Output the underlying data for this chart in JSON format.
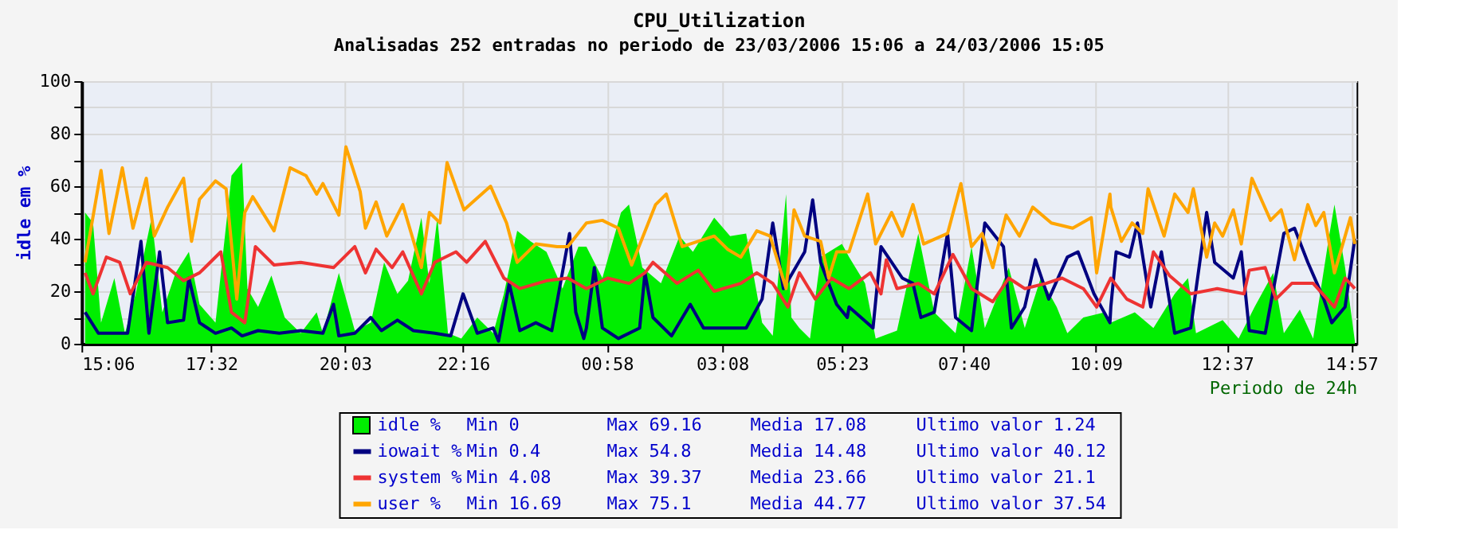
{
  "chart_data": {
    "type": "line",
    "title": "CPU_Utilization",
    "subtitle": "Analisadas 252 entradas no periodo de 23/03/2006 15:06 a 24/03/2006 15:05",
    "xlabel": "Periodo de 24h",
    "ylabel": "idle em %",
    "xlim": [
      "2006-03-23T15:06",
      "2006-03-24T15:03"
    ],
    "ylim": [
      0,
      100
    ],
    "xticks": [
      {
        "value": "2006-03-23T15:06",
        "label": "15:06"
      },
      {
        "value": "2006-03-23T17:32",
        "label": "17:32"
      },
      {
        "value": "2006-03-23T20:03",
        "label": "20:03"
      },
      {
        "value": "2006-03-23T22:16",
        "label": "22:16"
      },
      {
        "value": "2006-03-24T00:58",
        "label": "00:58"
      },
      {
        "value": "2006-03-24T03:08",
        "label": "03:08"
      },
      {
        "value": "2006-03-24T05:23",
        "label": "05:23"
      },
      {
        "value": "2006-03-24T07:40",
        "label": "07:40"
      },
      {
        "value": "2006-03-24T10:09",
        "label": "10:09"
      },
      {
        "value": "2006-03-24T12:37",
        "label": "12:37"
      },
      {
        "value": "2006-03-24T14:57",
        "label": "14:57"
      }
    ],
    "yticks": [
      0,
      {
        "value": 10,
        "label": null
      },
      20,
      {
        "value": 30,
        "label": null
      },
      40,
      {
        "value": 50,
        "label": null
      },
      60,
      {
        "value": 70,
        "label": null
      },
      80,
      {
        "value": 90,
        "label": null
      },
      100
    ],
    "grid": true,
    "legend": "bottom",
    "series": [
      {
        "name": "idle %",
        "type": "area",
        "color": "#00ee00",
        "x": [
          "2006-03-23T15:10",
          "2006-03-23T15:19",
          "2006-03-23T15:28",
          "2006-03-23T15:43",
          "2006-03-23T15:55",
          "2006-03-23T16:07",
          "2006-03-23T16:25",
          "2006-03-23T16:37",
          "2006-03-23T16:52",
          "2006-03-23T17:07",
          "2006-03-23T17:19",
          "2006-03-23T17:37",
          "2006-03-23T17:55",
          "2006-03-23T18:07",
          "2006-03-23T18:13",
          "2006-03-23T18:25",
          "2006-03-23T18:40",
          "2006-03-23T18:55",
          "2006-03-23T19:13",
          "2006-03-23T19:31",
          "2006-03-23T19:38",
          "2006-03-23T19:56",
          "2006-03-23T20:14",
          "2006-03-23T20:32",
          "2006-03-23T20:47",
          "2006-03-23T21:02",
          "2006-03-23T21:14",
          "2006-03-23T21:29",
          "2006-03-23T21:38",
          "2006-03-23T21:47",
          "2006-03-23T21:59",
          "2006-03-23T22:14",
          "2006-03-23T22:32",
          "2006-03-23T22:50",
          "2006-03-23T23:02",
          "2006-03-23T23:17",
          "2006-03-23T23:32",
          "2006-03-23T23:50",
          "2006-03-24T00:08",
          "2006-03-24T00:26",
          "2006-03-24T00:35",
          "2006-03-24T00:53",
          "2006-03-24T01:14",
          "2006-03-24T01:23",
          "2006-03-24T01:38",
          "2006-03-24T01:59",
          "2006-03-24T02:20",
          "2006-03-24T02:35",
          "2006-03-24T02:59",
          "2006-03-24T03:17",
          "2006-03-24T03:35",
          "2006-03-24T03:53",
          "2006-03-24T04:05",
          "2006-03-24T04:20",
          "2006-03-24T04:26",
          "2006-03-24T04:35",
          "2006-03-24T04:47",
          "2006-03-24T04:59",
          "2006-03-24T05:23",
          "2006-03-24T05:31",
          "2006-03-24T05:49",
          "2006-03-24T06:01",
          "2006-03-24T06:25",
          "2006-03-24T06:49",
          "2006-03-24T07:07",
          "2006-03-24T07:31",
          "2006-03-24T07:49",
          "2006-03-24T08:04",
          "2006-03-24T08:31",
          "2006-03-24T08:49",
          "2006-03-24T09:07",
          "2006-03-24T09:25",
          "2006-03-24T09:37",
          "2006-03-24T09:55",
          "2006-03-24T10:19",
          "2006-03-24T10:26",
          "2006-03-24T10:53",
          "2006-03-24T11:14",
          "2006-03-24T11:38",
          "2006-03-24T11:53",
          "2006-03-24T12:02",
          "2006-03-24T12:32",
          "2006-03-24T12:50",
          "2006-03-24T13:08",
          "2006-03-24T13:29",
          "2006-03-24T13:41",
          "2006-03-24T13:59",
          "2006-03-24T14:14",
          "2006-03-24T14:32",
          "2006-03-24T14:38",
          "2006-03-24T14:50",
          "2006-03-24T15:01"
        ],
        "values": [
          50,
          46,
          8,
          25,
          4,
          19,
          48,
          12,
          27,
          35,
          15,
          8,
          64,
          69,
          21,
          14,
          26,
          10,
          4,
          12,
          4,
          27,
          5,
          8,
          31,
          19,
          24,
          48,
          23,
          48,
          4,
          2,
          10,
          4,
          19,
          43,
          39,
          35,
          21,
          37,
          37,
          25,
          50,
          53,
          29,
          23,
          41,
          35,
          48,
          41,
          42,
          8,
          3,
          57,
          10,
          6,
          2,
          33,
          38,
          33,
          23,
          2,
          5,
          42,
          12,
          4,
          37,
          6,
          29,
          6,
          25,
          14,
          4,
          10,
          12,
          8,
          12,
          6,
          19,
          25,
          4,
          9,
          2,
          14,
          27,
          4,
          13,
          2,
          41,
          53,
          29,
          1
        ]
      },
      {
        "name": "iowait %",
        "color": "#000080",
        "x": [
          "2006-03-23T15:10",
          "2006-03-23T15:25",
          "2006-03-23T15:43",
          "2006-03-23T15:58",
          "2006-03-23T16:13",
          "2006-03-23T16:22",
          "2006-03-23T16:34",
          "2006-03-23T16:43",
          "2006-03-23T17:01",
          "2006-03-23T17:07",
          "2006-03-23T17:19",
          "2006-03-23T17:37",
          "2006-03-23T17:55",
          "2006-03-23T18:07",
          "2006-03-23T18:25",
          "2006-03-23T18:49",
          "2006-03-23T19:13",
          "2006-03-23T19:38",
          "2006-03-23T19:50",
          "2006-03-23T19:56",
          "2006-03-23T20:14",
          "2006-03-23T20:32",
          "2006-03-23T20:44",
          "2006-03-23T21:02",
          "2006-03-23T21:20",
          "2006-03-23T21:44",
          "2006-03-23T22:02",
          "2006-03-23T22:16",
          "2006-03-23T22:32",
          "2006-03-23T22:50",
          "2006-03-23T22:56",
          "2006-03-23T23:08",
          "2006-03-23T23:20",
          "2006-03-23T23:38",
          "2006-03-23T23:56",
          "2006-03-24T00:16",
          "2006-03-24T00:23",
          "2006-03-24T00:32",
          "2006-03-24T00:35",
          "2006-03-24T00:44",
          "2006-03-24T00:53",
          "2006-03-24T01:11",
          "2006-03-24T01:35",
          "2006-03-24T01:41",
          "2006-03-24T01:50",
          "2006-03-24T02:11",
          "2006-03-24T02:32",
          "2006-03-24T02:47",
          "2006-03-24T03:11",
          "2006-03-24T03:35",
          "2006-03-24T03:53",
          "2006-03-24T04:05",
          "2006-03-24T04:17",
          "2006-03-24T04:41",
          "2006-03-24T04:50",
          "2006-03-24T04:59",
          "2006-03-24T05:17",
          "2006-03-24T05:29",
          "2006-03-24T05:31",
          "2006-03-24T05:58",
          "2006-03-24T06:07",
          "2006-03-24T06:19",
          "2006-03-24T06:31",
          "2006-03-24T06:43",
          "2006-03-24T06:52",
          "2006-03-24T07:07",
          "2006-03-24T07:22",
          "2006-03-24T07:31",
          "2006-03-24T07:49",
          "2006-03-24T08:04",
          "2006-03-24T08:25",
          "2006-03-24T08:34",
          "2006-03-24T08:49",
          "2006-03-24T09:01",
          "2006-03-24T09:16",
          "2006-03-24T09:37",
          "2006-03-24T09:49",
          "2006-03-24T10:07",
          "2006-03-24T10:25",
          "2006-03-24T10:26",
          "2006-03-24T10:32",
          "2006-03-24T10:47",
          "2006-03-24T10:56",
          "2006-03-24T11:11",
          "2006-03-24T11:23",
          "2006-03-24T11:38",
          "2006-03-24T11:56",
          "2006-03-24T12:14",
          "2006-03-24T12:23",
          "2006-03-24T12:44",
          "2006-03-24T12:53",
          "2006-03-24T13:02",
          "2006-03-24T13:20",
          "2006-03-24T13:41",
          "2006-03-24T13:53",
          "2006-03-24T14:08",
          "2006-03-24T14:26",
          "2006-03-24T14:35",
          "2006-03-24T14:50",
          "2006-03-24T15:01"
        ],
        "values": [
          12,
          4,
          4,
          4,
          39,
          4,
          35,
          8,
          9,
          25,
          8,
          4,
          6,
          3,
          5,
          4,
          5,
          4,
          15,
          3,
          4,
          10,
          5,
          9,
          5,
          4,
          3,
          19,
          4,
          6,
          1,
          23,
          5,
          8,
          5,
          42,
          12,
          2,
          6,
          29,
          6,
          2,
          6,
          27,
          10,
          3,
          15,
          6,
          6,
          6,
          17,
          46,
          21,
          35,
          54.8,
          31,
          15,
          10,
          14,
          6,
          37,
          31,
          25,
          23,
          10,
          12,
          42,
          10,
          5,
          46,
          37,
          6,
          14,
          32,
          17,
          33,
          35,
          19,
          8,
          14,
          35,
          33,
          46,
          14,
          35,
          4,
          6,
          50,
          31,
          25,
          35,
          5,
          4,
          42,
          44,
          31,
          17,
          8,
          14,
          40
        ]
      },
      {
        "name": "system %",
        "color": "#ee3333",
        "x": [
          "2006-03-23T15:10",
          "2006-03-23T15:19",
          "2006-03-23T15:34",
          "2006-03-23T15:49",
          "2006-03-23T16:01",
          "2006-03-23T16:19",
          "2006-03-23T16:43",
          "2006-03-23T17:01",
          "2006-03-23T17:19",
          "2006-03-23T17:43",
          "2006-03-23T17:55",
          "2006-03-23T18:10",
          "2006-03-23T18:22",
          "2006-03-23T18:43",
          "2006-03-23T19:13",
          "2006-03-23T19:50",
          "2006-03-23T20:14",
          "2006-03-23T20:26",
          "2006-03-23T20:38",
          "2006-03-23T20:56",
          "2006-03-23T21:08",
          "2006-03-23T21:29",
          "2006-03-23T21:44",
          "2006-03-23T22:08",
          "2006-03-23T22:20",
          "2006-03-23T22:41",
          "2006-03-23T23:02",
          "2006-03-23T23:20",
          "2006-03-23T23:50",
          "2006-03-24T00:14",
          "2006-03-24T00:35",
          "2006-03-24T00:59",
          "2006-03-24T01:23",
          "2006-03-24T01:41",
          "2006-03-24T01:50",
          "2006-03-24T02:17",
          "2006-03-24T02:41",
          "2006-03-24T02:59",
          "2006-03-24T03:29",
          "2006-03-24T03:47",
          "2006-03-24T04:05",
          "2006-03-24T04:22",
          "2006-03-24T04:35",
          "2006-03-24T04:53",
          "2006-03-24T05:11",
          "2006-03-24T05:31",
          "2006-03-24T05:55",
          "2006-03-24T06:07",
          "2006-03-24T06:13",
          "2006-03-24T06:25",
          "2006-03-24T06:49",
          "2006-03-24T07:07",
          "2006-03-24T07:28",
          "2006-03-24T07:49",
          "2006-03-24T08:13",
          "2006-03-24T08:31",
          "2006-03-24T08:49",
          "2006-03-24T09:13",
          "2006-03-24T09:31",
          "2006-03-24T09:55",
          "2006-03-24T10:10",
          "2006-03-24T10:26",
          "2006-03-24T10:44",
          "2006-03-24T11:02",
          "2006-03-24T11:14",
          "2006-03-24T11:32",
          "2006-03-24T11:56",
          "2006-03-24T12:26",
          "2006-03-24T12:56",
          "2006-03-24T13:02",
          "2006-03-24T13:20",
          "2006-03-24T13:32",
          "2006-03-24T13:50",
          "2006-03-24T14:14",
          "2006-03-24T14:38",
          "2006-03-24T14:50",
          "2006-03-24T15:01"
        ],
        "values": [
          27,
          19,
          33,
          31,
          19,
          31,
          29,
          24,
          27,
          35,
          12,
          8,
          37,
          30,
          31,
          29,
          37,
          27,
          36,
          29,
          35,
          19,
          31,
          35,
          31,
          39,
          25,
          21,
          24,
          25,
          21,
          25,
          23,
          27,
          31,
          23,
          28,
          20,
          23,
          27,
          23,
          14,
          27,
          17,
          25,
          21,
          27,
          19,
          32,
          21,
          23,
          19,
          34,
          21,
          16,
          25,
          21,
          23,
          25,
          21,
          14,
          25,
          17,
          14,
          35,
          26,
          19,
          21,
          19,
          28,
          29,
          17,
          23,
          23,
          14,
          25,
          21
        ]
      },
      {
        "name": "user %",
        "color": "#ffa500",
        "x": [
          "2006-03-23T15:10",
          "2006-03-23T15:28",
          "2006-03-23T15:37",
          "2006-03-23T15:52",
          "2006-03-23T16:04",
          "2006-03-23T16:19",
          "2006-03-23T16:28",
          "2006-03-23T16:43",
          "2006-03-23T17:01",
          "2006-03-23T17:10",
          "2006-03-23T17:19",
          "2006-03-23T17:37",
          "2006-03-23T17:49",
          "2006-03-23T18:01",
          "2006-03-23T18:10",
          "2006-03-23T18:19",
          "2006-03-23T18:43",
          "2006-03-23T19:01",
          "2006-03-23T19:19",
          "2006-03-23T19:31",
          "2006-03-23T19:38",
          "2006-03-23T19:56",
          "2006-03-23T20:04",
          "2006-03-23T20:20",
          "2006-03-23T20:26",
          "2006-03-23T20:38",
          "2006-03-23T20:50",
          "2006-03-23T21:08",
          "2006-03-23T21:29",
          "2006-03-23T21:38",
          "2006-03-23T21:50",
          "2006-03-23T21:58",
          "2006-03-23T22:17",
          "2006-03-23T22:47",
          "2006-03-23T23:05",
          "2006-03-23T23:17",
          "2006-03-23T23:38",
          "2006-03-24T00:02",
          "2006-03-24T00:14",
          "2006-03-24T00:35",
          "2006-03-24T00:53",
          "2006-03-24T01:11",
          "2006-03-24T01:26",
          "2006-03-24T01:53",
          "2006-03-24T02:05",
          "2006-03-24T02:23",
          "2006-03-24T02:59",
          "2006-03-24T03:14",
          "2006-03-24T03:29",
          "2006-03-24T03:47",
          "2006-03-24T04:02",
          "2006-03-24T04:20",
          "2006-03-24T04:29",
          "2006-03-24T04:41",
          "2006-03-24T04:59",
          "2006-03-24T05:08",
          "2006-03-24T05:17",
          "2006-03-24T05:31",
          "2006-03-24T05:52",
          "2006-03-24T06:01",
          "2006-03-24T06:19",
          "2006-03-24T06:31",
          "2006-03-24T06:43",
          "2006-03-24T06:55",
          "2006-03-24T07:22",
          "2006-03-24T07:37",
          "2006-03-24T07:49",
          "2006-03-24T08:01",
          "2006-03-24T08:13",
          "2006-03-24T08:28",
          "2006-03-24T08:43",
          "2006-03-24T08:58",
          "2006-03-24T09:19",
          "2006-03-24T09:43",
          "2006-03-24T10:04",
          "2006-03-24T10:10",
          "2006-03-24T10:25",
          "2006-03-24T10:26",
          "2006-03-24T10:38",
          "2006-03-24T10:50",
          "2006-03-24T11:02",
          "2006-03-24T11:08",
          "2006-03-24T11:26",
          "2006-03-24T11:38",
          "2006-03-24T11:53",
          "2006-03-24T11:59",
          "2006-03-24T12:14",
          "2006-03-24T12:23",
          "2006-03-24T12:32",
          "2006-03-24T12:44",
          "2006-03-24T12:53",
          "2006-03-24T13:05",
          "2006-03-24T13:26",
          "2006-03-24T13:38",
          "2006-03-24T13:53",
          "2006-03-24T14:08",
          "2006-03-24T14:17",
          "2006-03-24T14:26",
          "2006-03-24T14:38",
          "2006-03-24T14:56",
          "2006-03-24T15:01"
        ],
        "values": [
          31,
          66,
          42,
          67,
          44,
          63,
          41,
          52,
          63,
          39,
          55,
          62,
          59,
          17,
          50,
          56,
          43,
          67,
          64,
          57,
          61,
          49,
          75,
          58,
          44,
          54,
          41,
          53,
          29,
          50,
          46,
          69,
          51,
          60,
          46,
          31,
          38,
          37,
          37,
          46,
          47,
          44,
          30,
          53,
          57,
          37,
          41,
          36,
          33,
          43,
          41,
          21,
          51,
          41,
          39,
          25,
          35,
          35,
          57,
          38,
          50,
          41,
          53,
          38,
          42,
          61,
          37,
          42,
          29,
          49,
          41,
          52,
          46,
          44,
          48,
          27,
          57,
          52,
          39,
          46,
          42,
          59,
          41,
          57,
          50,
          59,
          33,
          46,
          41,
          51,
          38,
          63,
          47,
          51,
          32,
          53,
          45,
          50,
          27,
          48,
          38
        ]
      }
    ],
    "annotations": [
      "Min 0",
      "Max 69.16",
      "Media 17.08",
      "Ultimo valor 1.24",
      "Min 0.4",
      "Max 54.8",
      "Media 14.48",
      "Ultimo valor 40.12",
      "Min 4.08",
      "Max 39.37",
      "Media 23.66",
      "Ultimo valor 21.1",
      "Min 16.69",
      "Max 75.1",
      "Media 44.77",
      "Ultimo valor 37.54"
    ]
  }
}
